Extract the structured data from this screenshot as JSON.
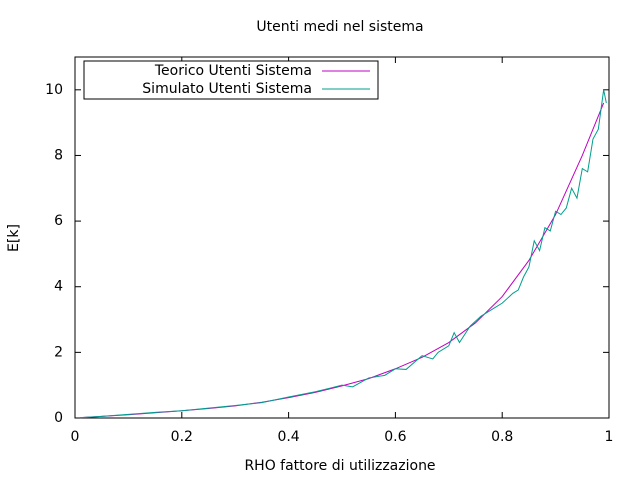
{
  "chart_data": {
    "type": "line",
    "title": "Utenti medi nel sistema",
    "x_label": "RHO fattore di utilizzazione",
    "y_label": "E[k]",
    "xlim": [
      0,
      1
    ],
    "ylim": [
      0,
      11
    ],
    "xticks": [
      0,
      0.2,
      0.4,
      0.6,
      0.8,
      1
    ],
    "yticks": [
      0,
      2,
      4,
      6,
      8,
      10
    ],
    "legend": "top-left",
    "series": [
      {
        "name": "Teorico Utenti Sistema",
        "color": "#c000c0",
        "x": [
          0.01,
          0.05,
          0.1,
          0.15,
          0.2,
          0.25,
          0.3,
          0.35,
          0.4,
          0.45,
          0.5,
          0.55,
          0.6,
          0.65,
          0.7,
          0.75,
          0.8,
          0.85,
          0.9,
          0.95,
          0.99
        ],
        "values": [
          0.01,
          0.05,
          0.1,
          0.16,
          0.22,
          0.29,
          0.37,
          0.48,
          0.62,
          0.78,
          0.98,
          1.2,
          1.5,
          1.85,
          2.3,
          2.9,
          3.7,
          4.8,
          6.2,
          8.0,
          9.6
        ]
      },
      {
        "name": "Simulato Utenti Sistema",
        "color": "#009e8e",
        "x": [
          0.01,
          0.05,
          0.1,
          0.15,
          0.2,
          0.25,
          0.3,
          0.35,
          0.4,
          0.45,
          0.48,
          0.5,
          0.52,
          0.55,
          0.58,
          0.6,
          0.62,
          0.65,
          0.67,
          0.68,
          0.7,
          0.71,
          0.72,
          0.74,
          0.76,
          0.78,
          0.8,
          0.82,
          0.83,
          0.84,
          0.85,
          0.86,
          0.87,
          0.88,
          0.89,
          0.9,
          0.91,
          0.92,
          0.93,
          0.94,
          0.95,
          0.96,
          0.97,
          0.98,
          0.99,
          0.995
        ],
        "values": [
          0.01,
          0.05,
          0.11,
          0.17,
          0.22,
          0.3,
          0.38,
          0.47,
          0.64,
          0.8,
          0.92,
          1.0,
          0.95,
          1.22,
          1.3,
          1.5,
          1.48,
          1.9,
          1.8,
          2.0,
          2.2,
          2.6,
          2.3,
          2.8,
          3.1,
          3.3,
          3.5,
          3.8,
          3.9,
          4.3,
          4.6,
          5.4,
          5.1,
          5.8,
          5.7,
          6.3,
          6.2,
          6.4,
          7.0,
          6.7,
          7.6,
          7.5,
          8.5,
          8.8,
          10.0,
          9.6
        ]
      }
    ]
  }
}
